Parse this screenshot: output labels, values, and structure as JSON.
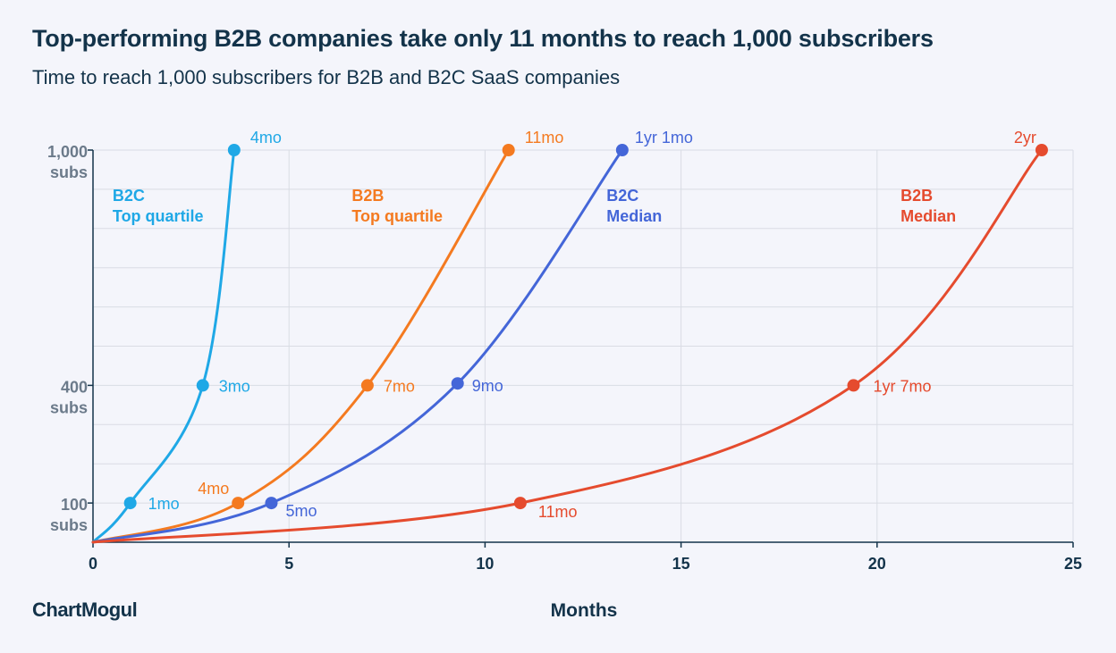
{
  "header": {
    "title": "Top-performing B2B companies take only 11 months to reach 1,000 subscribers",
    "subtitle": "Time to reach 1,000 subscribers for B2B and B2C SaaS companies"
  },
  "brand": {
    "logo_text": "ChartMogul"
  },
  "chart_data": {
    "type": "line",
    "title": "Top-performing B2B companies take only 11 months to reach 1,000 subscribers",
    "subtitle": "Time to reach 1,000 subscribers for B2B and B2C SaaS companies",
    "xlabel": "Months",
    "ylabel": "",
    "xlim": [
      0,
      25
    ],
    "ylim": [
      0,
      1000
    ],
    "x_ticks": [
      0,
      5,
      10,
      15,
      20,
      25
    ],
    "x_tick_labels": [
      "0",
      "5",
      "10",
      "15",
      "20",
      "25"
    ],
    "y_ticks": [
      {
        "value": 100,
        "line1": "100",
        "line2": "subs"
      },
      {
        "value": 400,
        "line1": "400",
        "line2": "subs"
      },
      {
        "value": 1000,
        "line1": "1,000",
        "line2": "subs"
      }
    ],
    "grid": true,
    "series": [
      {
        "name": "B2C Top quartile",
        "label_line1": "B2C",
        "label_line2": "Top quartile",
        "color": "#1fa8e6",
        "label_x": 0.5,
        "label_y": 870,
        "points": [
          {
            "x": 0,
            "y": 0
          },
          {
            "x": 0.95,
            "y": 100,
            "label": "1mo"
          },
          {
            "x": 2.8,
            "y": 400,
            "label": "3mo"
          },
          {
            "x": 3.6,
            "y": 1000,
            "label": "4mo"
          }
        ]
      },
      {
        "name": "B2B Top quartile",
        "label_line1": "B2B",
        "label_line2": "Top quartile",
        "color": "#f47a20",
        "label_x": 6.6,
        "label_y": 870,
        "points": [
          {
            "x": 0,
            "y": 0
          },
          {
            "x": 3.7,
            "y": 100,
            "label": "4mo"
          },
          {
            "x": 7.0,
            "y": 400,
            "label": "7mo"
          },
          {
            "x": 10.6,
            "y": 1000,
            "label": "11mo"
          }
        ]
      },
      {
        "name": "B2C Median",
        "label_line1": "B2C",
        "label_line2": "Median",
        "color": "#4466d8",
        "label_x": 13.1,
        "label_y": 870,
        "points": [
          {
            "x": 0,
            "y": 0
          },
          {
            "x": 4.55,
            "y": 100,
            "label": "5mo"
          },
          {
            "x": 9.3,
            "y": 405,
            "label": "9mo"
          },
          {
            "x": 13.5,
            "y": 1000,
            "label": "1yr 1mo"
          }
        ]
      },
      {
        "name": "B2B Median",
        "label_line1": "B2B",
        "label_line2": "Median",
        "color": "#e54b2e",
        "label_x": 20.6,
        "label_y": 870,
        "points": [
          {
            "x": 0,
            "y": 0
          },
          {
            "x": 10.9,
            "y": 100,
            "label": "11mo"
          },
          {
            "x": 19.4,
            "y": 400,
            "label": "1yr 7mo"
          },
          {
            "x": 24.2,
            "y": 1000,
            "label": "2yr"
          }
        ]
      }
    ]
  }
}
